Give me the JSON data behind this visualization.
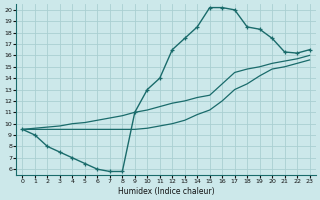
{
  "xlabel": "Humidex (Indice chaleur)",
  "bg_color": "#cce8ea",
  "grid_color": "#aacfd2",
  "line_color": "#1a6b6b",
  "line1_x": [
    0,
    1,
    2,
    3,
    4,
    5,
    6,
    7,
    8,
    9,
    10,
    11,
    12,
    13,
    14,
    15,
    16,
    17,
    18,
    19,
    20,
    21,
    22,
    23
  ],
  "line1_y": [
    9.5,
    9.0,
    8.0,
    7.5,
    7.0,
    6.5,
    6.0,
    5.8,
    5.8,
    11.0,
    13.0,
    14.0,
    16.5,
    17.5,
    18.5,
    20.2,
    20.2,
    20.0,
    18.5,
    18.3,
    17.5,
    16.3,
    16.2,
    16.5
  ],
  "line2_x": [
    0,
    1,
    2,
    3,
    4,
    5,
    6,
    7,
    8,
    9,
    10,
    11,
    12,
    13,
    14,
    15,
    16,
    17,
    18,
    19,
    20,
    21,
    22,
    23
  ],
  "line2_y": [
    9.5,
    9.6,
    9.7,
    9.8,
    10.0,
    10.1,
    10.3,
    10.5,
    10.7,
    11.0,
    11.2,
    11.5,
    11.8,
    12.0,
    12.3,
    12.5,
    13.5,
    14.5,
    14.8,
    15.0,
    15.3,
    15.5,
    15.7,
    16.0
  ],
  "line3_x": [
    0,
    1,
    2,
    3,
    4,
    5,
    6,
    7,
    8,
    9,
    10,
    11,
    12,
    13,
    14,
    15,
    16,
    17,
    18,
    19,
    20,
    21,
    22,
    23
  ],
  "line3_y": [
    9.5,
    9.5,
    9.5,
    9.5,
    9.5,
    9.5,
    9.5,
    9.5,
    9.5,
    9.5,
    9.6,
    9.8,
    10.0,
    10.3,
    10.8,
    11.2,
    12.0,
    13.0,
    13.5,
    14.2,
    14.8,
    15.0,
    15.3,
    15.6
  ],
  "xlim": [
    -0.5,
    23.5
  ],
  "ylim": [
    5.5,
    20.5
  ],
  "yticks": [
    6,
    7,
    8,
    9,
    10,
    11,
    12,
    13,
    14,
    15,
    16,
    17,
    18,
    19,
    20
  ],
  "xticks": [
    0,
    1,
    2,
    3,
    4,
    5,
    6,
    7,
    8,
    9,
    10,
    11,
    12,
    13,
    14,
    15,
    16,
    17,
    18,
    19,
    20,
    21,
    22,
    23
  ]
}
